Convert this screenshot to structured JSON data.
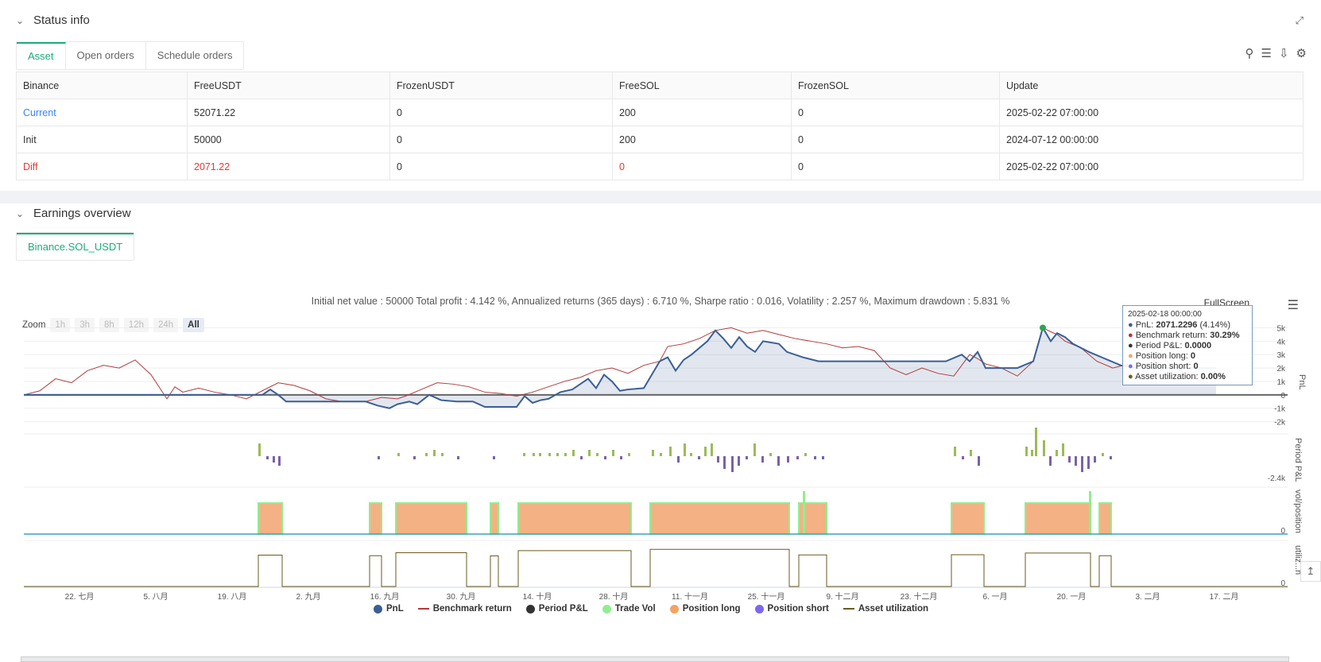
{
  "status": {
    "title": "Status info",
    "tabs": [
      "Asset",
      "Open orders",
      "Schedule orders"
    ],
    "table": {
      "headers": [
        "Binance",
        "FreeUSDT",
        "FrozenUSDT",
        "FreeSOL",
        "FrozenSOL",
        "Update"
      ],
      "rows": [
        [
          "Current",
          "52071.22",
          "0",
          "200",
          "0",
          "2025-02-22 07:00:00"
        ],
        [
          "Init",
          "50000",
          "0",
          "200",
          "0",
          "2024-07-12 00:00:00"
        ],
        [
          "Diff",
          "2071.22",
          "0",
          "0",
          "0",
          "2025-02-22 07:00:00"
        ]
      ]
    }
  },
  "earnings": {
    "title": "Earnings overview",
    "tab": "Binance.SOL_USDT",
    "stats": "Initial net value : 50000 Total profit : 4.142 %, Annualized returns (365 days) : 6.710 %, Sharpe ratio : 0.016, Volatility : 2.257 %, Maximum drawdown : 5.831 %",
    "fullscreen": "FullScreen",
    "zoom_label": "Zoom",
    "zoom_buttons": [
      "1h",
      "3h",
      "8h",
      "12h",
      "24h",
      "All"
    ],
    "tooltip": {
      "date": "2025-02-18 00:00:00",
      "pnl_label": "PnL:",
      "pnl_value": "2071.2296",
      "pnl_pct": "(4.14%)",
      "bench_label": "Benchmark return:",
      "bench_value": "30.29%",
      "period_label": "Period P&L:",
      "period_value": "0.0000",
      "long_label": "Position long:",
      "long_value": "0",
      "short_label": "Position short:",
      "short_value": "0",
      "util_label": "Asset utilization:",
      "util_value": "0.00%"
    },
    "legend": [
      "PnL",
      "Benchmark return",
      "Period P&L",
      "Trade Vol",
      "Position long",
      "Position short",
      "Asset utilization"
    ]
  },
  "chart_data": {
    "type": "line",
    "x_ticks": [
      "22. 七月",
      "5. 八月",
      "19. 八月",
      "2. 九月",
      "16. 九月",
      "30. 九月",
      "14. 十月",
      "28. 十月",
      "11. 十一月",
      "25. 十一月",
      "9. 十二月",
      "23. 十二月",
      "6. 一月",
      "20. 一月",
      "3. 二月",
      "17. 二月"
    ],
    "pnl_ticks": [
      "5k",
      "4k",
      "3k",
      "2k",
      "1k",
      "0",
      "-1k",
      "-2k"
    ],
    "pnl_axis_label": "PnL",
    "period_axis_label": "Period P&L",
    "period_tick": "-2.4k",
    "vol_axis_label": "vol/position",
    "vol_tick": "0",
    "util_axis_label": "utiliz...n",
    "util_tick": "0",
    "series": [
      {
        "name": "PnL",
        "color": "#3a5f95",
        "values": [
          0,
          0,
          0,
          0,
          0,
          0,
          0,
          0,
          0,
          0,
          0,
          0,
          0,
          0,
          0,
          0,
          0,
          0,
          0,
          0,
          0,
          0,
          0,
          0,
          0,
          0,
          0,
          0,
          0,
          0,
          0,
          0,
          0,
          0,
          0,
          0,
          0,
          0,
          0,
          0,
          0,
          0,
          0,
          0,
          0,
          0,
          0,
          0,
          0,
          0,
          0,
          0,
          0,
          0,
          0,
          0,
          0,
          0,
          0,
          0,
          0,
          0,
          0,
          0,
          0,
          0,
          0,
          0,
          0,
          0,
          0,
          0,
          0,
          0,
          0,
          0,
          0,
          0,
          0,
          0,
          0,
          0,
          0,
          0,
          0,
          0,
          0,
          0,
          0,
          0,
          0,
          0,
          0,
          0,
          0,
          0,
          0,
          0,
          0,
          0,
          0,
          0,
          0,
          0,
          0,
          0,
          0,
          0,
          0,
          0,
          0,
          0,
          0,
          0,
          0,
          0,
          0,
          0,
          0,
          0,
          0,
          0,
          0,
          0,
          0,
          0,
          0,
          0,
          0,
          0,
          0,
          0,
          0,
          0,
          0,
          0,
          0,
          0,
          0,
          0,
          0,
          0,
          0,
          0,
          0,
          0,
          0,
          0,
          0,
          0,
          0,
          0,
          0,
          0,
          0,
          0,
          0,
          0,
          0,
          0,
          0,
          0,
          0,
          0,
          0,
          0,
          0,
          0,
          0,
          0,
          0,
          0,
          0,
          0,
          0,
          0,
          0,
          0,
          0,
          0,
          0,
          0,
          0,
          0,
          0,
          0,
          0,
          0,
          0,
          0,
          0,
          0,
          0,
          0,
          0,
          0,
          0,
          0,
          0,
          0,
          0,
          0,
          0,
          0,
          0,
          0,
          0,
          0,
          0,
          0,
          0,
          0,
          0,
          0,
          0,
          0,
          0,
          0,
          0,
          0,
          0,
          0,
          0,
          0,
          0,
          0,
          0,
          0,
          0,
          0,
          0,
          0,
          0,
          0,
          0,
          0,
          0,
          0,
          0,
          0,
          0,
          0,
          0,
          0
        ]
      },
      {
        "name": "Benchmark return",
        "color": "#b03a3a"
      }
    ],
    "pnl_points": [
      [
        0,
        0
      ],
      [
        40,
        0
      ],
      [
        80,
        0
      ],
      [
        120,
        0
      ],
      [
        160,
        0
      ],
      [
        200,
        0
      ],
      [
        240,
        0
      ],
      [
        280,
        0
      ],
      [
        300,
        0
      ],
      [
        310,
        400
      ],
      [
        320,
        0
      ],
      [
        330,
        -500
      ],
      [
        360,
        -500
      ],
      [
        400,
        -500
      ],
      [
        430,
        -500
      ],
      [
        445,
        -800
      ],
      [
        460,
        -1000
      ],
      [
        470,
        -700
      ],
      [
        485,
        -500
      ],
      [
        495,
        -700
      ],
      [
        510,
        0
      ],
      [
        525,
        -400
      ],
      [
        545,
        -500
      ],
      [
        565,
        -500
      ],
      [
        580,
        -900
      ],
      [
        600,
        -900
      ],
      [
        620,
        -900
      ],
      [
        630,
        -100
      ],
      [
        640,
        -600
      ],
      [
        650,
        -400
      ],
      [
        660,
        -300
      ],
      [
        675,
        200
      ],
      [
        690,
        400
      ],
      [
        700,
        800
      ],
      [
        710,
        1200
      ],
      [
        720,
        500
      ],
      [
        730,
        1500
      ],
      [
        740,
        1000
      ],
      [
        750,
        300
      ],
      [
        760,
        400
      ],
      [
        780,
        500
      ],
      [
        800,
        2500
      ],
      [
        810,
        2800
      ],
      [
        820,
        1800
      ],
      [
        830,
        2600
      ],
      [
        840,
        3000
      ],
      [
        860,
        4000
      ],
      [
        870,
        4800
      ],
      [
        880,
        4200
      ],
      [
        890,
        3500
      ],
      [
        900,
        4300
      ],
      [
        910,
        3600
      ],
      [
        920,
        3200
      ],
      [
        930,
        4000
      ],
      [
        950,
        3800
      ],
      [
        960,
        3200
      ],
      [
        980,
        2800
      ],
      [
        1000,
        2500
      ],
      [
        1020,
        2500
      ],
      [
        1050,
        2500
      ],
      [
        1080,
        2500
      ],
      [
        1110,
        2500
      ],
      [
        1140,
        2500
      ],
      [
        1160,
        2500
      ],
      [
        1180,
        3000
      ],
      [
        1190,
        2500
      ],
      [
        1200,
        3200
      ],
      [
        1210,
        2000
      ],
      [
        1230,
        2000
      ],
      [
        1250,
        2000
      ],
      [
        1270,
        2500
      ],
      [
        1282,
        5000
      ],
      [
        1292,
        4000
      ],
      [
        1300,
        4600
      ],
      [
        1310,
        4300
      ],
      [
        1320,
        3800
      ],
      [
        1340,
        3200
      ],
      [
        1360,
        2700
      ],
      [
        1380,
        2200
      ],
      [
        1400,
        2000
      ],
      [
        1420,
        2000
      ],
      [
        1430,
        2000
      ],
      [
        1450,
        2000
      ],
      [
        1480,
        2000
      ],
      [
        1500,
        2000
      ]
    ],
    "bench_points": [
      [
        0,
        0
      ],
      [
        20,
        300
      ],
      [
        40,
        1200
      ],
      [
        60,
        900
      ],
      [
        80,
        1800
      ],
      [
        100,
        2200
      ],
      [
        120,
        2000
      ],
      [
        140,
        2600
      ],
      [
        160,
        1500
      ],
      [
        180,
        -300
      ],
      [
        190,
        600
      ],
      [
        200,
        200
      ],
      [
        220,
        500
      ],
      [
        240,
        200
      ],
      [
        260,
        0
      ],
      [
        280,
        -300
      ],
      [
        300,
        300
      ],
      [
        320,
        900
      ],
      [
        340,
        700
      ],
      [
        360,
        300
      ],
      [
        380,
        -300
      ],
      [
        400,
        -500
      ],
      [
        430,
        -500
      ],
      [
        450,
        -200
      ],
      [
        470,
        -300
      ],
      [
        480,
        -100
      ],
      [
        500,
        400
      ],
      [
        520,
        900
      ],
      [
        540,
        800
      ],
      [
        560,
        600
      ],
      [
        580,
        200
      ],
      [
        600,
        100
      ],
      [
        620,
        -100
      ],
      [
        640,
        200
      ],
      [
        660,
        600
      ],
      [
        680,
        1000
      ],
      [
        700,
        1300
      ],
      [
        720,
        1800
      ],
      [
        740,
        2000
      ],
      [
        760,
        1600
      ],
      [
        780,
        2200
      ],
      [
        800,
        2500
      ],
      [
        810,
        3600
      ],
      [
        830,
        3800
      ],
      [
        850,
        4200
      ],
      [
        870,
        4800
      ],
      [
        890,
        5000
      ],
      [
        910,
        4600
      ],
      [
        930,
        4800
      ],
      [
        950,
        4500
      ],
      [
        970,
        4200
      ],
      [
        990,
        4000
      ],
      [
        1010,
        3800
      ],
      [
        1030,
        3500
      ],
      [
        1050,
        3600
      ],
      [
        1070,
        3300
      ],
      [
        1090,
        2000
      ],
      [
        1110,
        1500
      ],
      [
        1130,
        2000
      ],
      [
        1150,
        1600
      ],
      [
        1170,
        1400
      ],
      [
        1190,
        3000
      ],
      [
        1200,
        2700
      ],
      [
        1210,
        2300
      ],
      [
        1230,
        2000
      ],
      [
        1250,
        1400
      ],
      [
        1270,
        2500
      ],
      [
        1282,
        5000
      ],
      [
        1292,
        4700
      ],
      [
        1300,
        4500
      ],
      [
        1310,
        4000
      ],
      [
        1330,
        3500
      ],
      [
        1350,
        2500
      ],
      [
        1370,
        2000
      ],
      [
        1390,
        2300
      ],
      [
        1410,
        2100
      ],
      [
        1430,
        2800
      ],
      [
        1450,
        2000
      ],
      [
        1480,
        1000
      ],
      [
        1500,
        1800
      ]
    ],
    "position_blocks": [
      [
        295,
        325
      ],
      [
        435,
        450
      ],
      [
        468,
        557
      ],
      [
        587,
        597
      ],
      [
        622,
        764
      ],
      [
        788,
        963
      ],
      [
        975,
        1010
      ],
      [
        1167,
        1208
      ],
      [
        1260,
        1342
      ],
      [
        1353,
        1368
      ]
    ],
    "trade_spikes": [
      [
        980,
        5
      ],
      [
        1340,
        5
      ]
    ],
    "period_bars": [
      [
        295,
        4
      ],
      [
        305,
        -1
      ],
      [
        313,
        -2
      ],
      [
        320,
        -3
      ],
      [
        445,
        -1
      ],
      [
        470,
        1
      ],
      [
        490,
        -1
      ],
      [
        505,
        1
      ],
      [
        515,
        2
      ],
      [
        525,
        1
      ],
      [
        545,
        -1
      ],
      [
        590,
        -1
      ],
      [
        628,
        1
      ],
      [
        640,
        1
      ],
      [
        648,
        1
      ],
      [
        660,
        1
      ],
      [
        670,
        1
      ],
      [
        680,
        1
      ],
      [
        690,
        2
      ],
      [
        700,
        -1
      ],
      [
        710,
        2
      ],
      [
        720,
        1
      ],
      [
        730,
        -1
      ],
      [
        740,
        2
      ],
      [
        750,
        -1
      ],
      [
        760,
        1
      ],
      [
        790,
        2
      ],
      [
        800,
        1
      ],
      [
        812,
        3
      ],
      [
        822,
        -2
      ],
      [
        830,
        4
      ],
      [
        838,
        1
      ],
      [
        848,
        -1
      ],
      [
        856,
        3
      ],
      [
        864,
        4
      ],
      [
        872,
        -2
      ],
      [
        880,
        -4
      ],
      [
        890,
        -5
      ],
      [
        898,
        -3
      ],
      [
        908,
        -1
      ],
      [
        918,
        4
      ],
      [
        928,
        -2
      ],
      [
        938,
        1
      ],
      [
        948,
        -3
      ],
      [
        960,
        -2
      ],
      [
        972,
        -1
      ],
      [
        982,
        1
      ],
      [
        994,
        -1
      ],
      [
        1004,
        -1
      ],
      [
        1170,
        3
      ],
      [
        1180,
        -1
      ],
      [
        1190,
        2
      ],
      [
        1200,
        -3
      ],
      [
        1260,
        3
      ],
      [
        1267,
        2
      ],
      [
        1272,
        9
      ],
      [
        1282,
        5
      ],
      [
        1290,
        -3
      ],
      [
        1298,
        2
      ],
      [
        1306,
        4
      ],
      [
        1314,
        -2
      ],
      [
        1322,
        -3
      ],
      [
        1330,
        -5
      ],
      [
        1338,
        -4
      ],
      [
        1346,
        -2
      ],
      [
        1356,
        1
      ],
      [
        1366,
        -1
      ]
    ]
  }
}
